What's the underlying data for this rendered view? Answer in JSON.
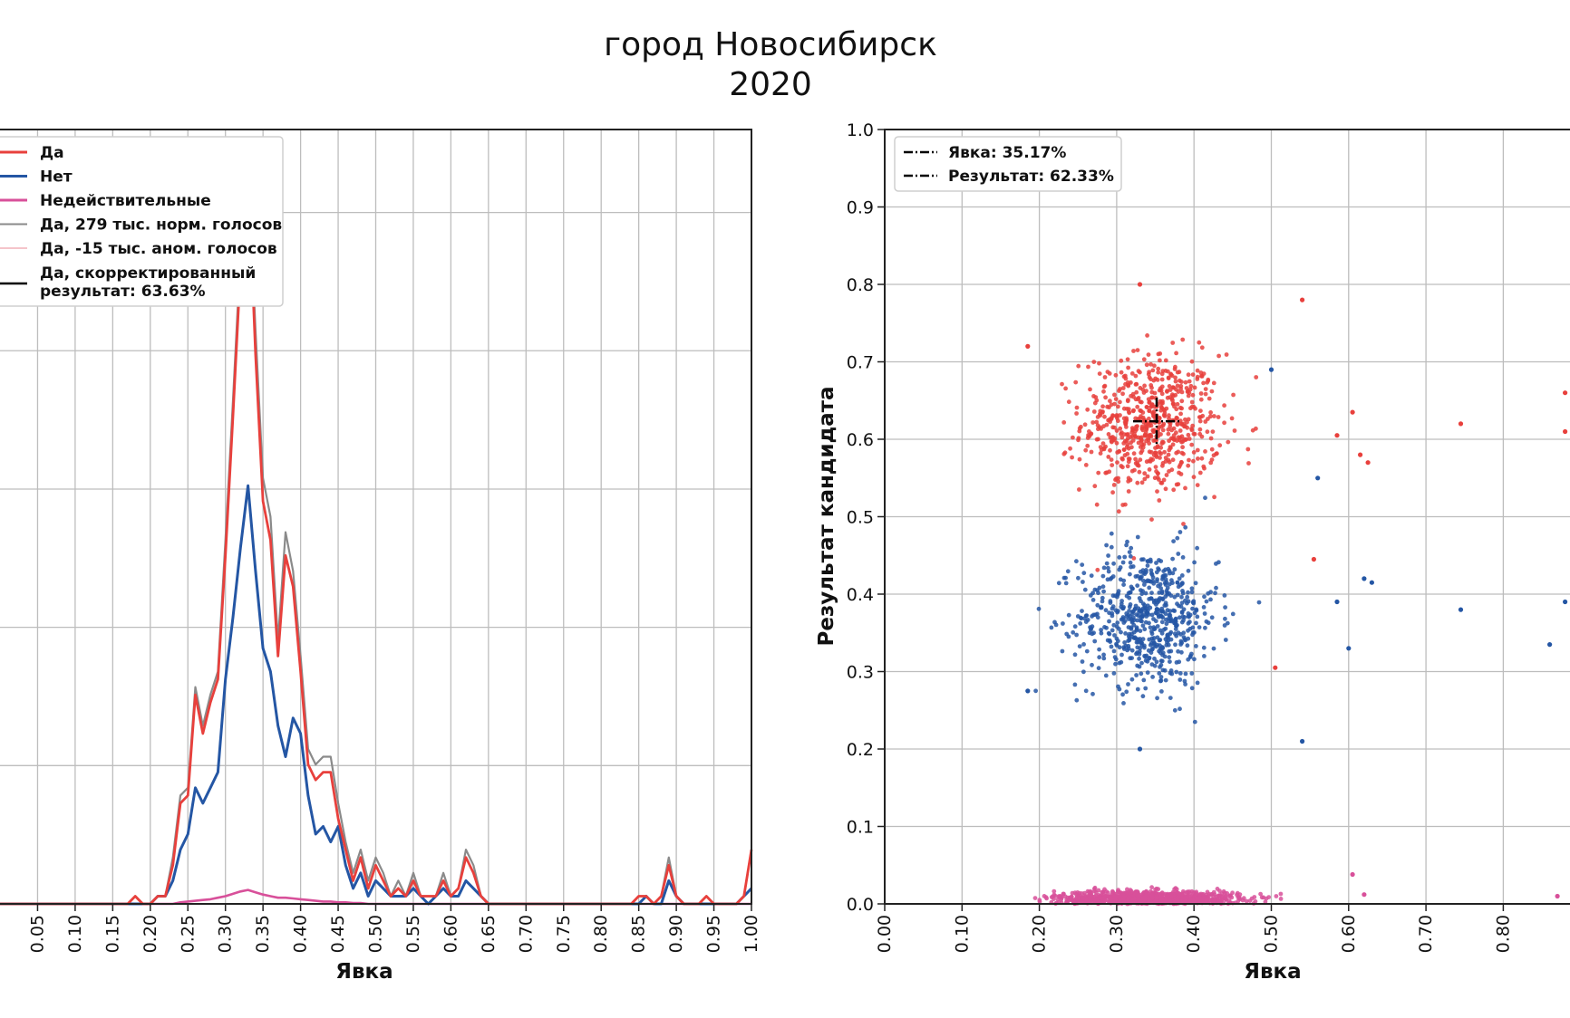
{
  "title": {
    "line1": "город Новосибирск",
    "line2": "2020"
  },
  "colors": {
    "yes": "#e8403c",
    "no": "#2456a4",
    "invalid": "#d8509a",
    "normal": "#8a8a8a",
    "anomalous": "#f2b0b8",
    "corrected": "#000000",
    "grid": "#bdbdbd"
  },
  "chart_data": [
    {
      "type": "line",
      "xlabel": "Явка",
      "ylabel": "",
      "xlim": [
        0.0,
        1.0
      ],
      "xticks": [
        "0.05",
        "0.10",
        "0.15",
        "0.20",
        "0.25",
        "0.30",
        "0.35",
        "0.40",
        "0.45",
        "0.50",
        "0.55",
        "0.60",
        "0.65",
        "0.70",
        "0.75",
        "0.80",
        "0.85",
        "0.90",
        "0.95",
        "1.00"
      ],
      "x": [
        0.0,
        0.17,
        0.18,
        0.19,
        0.2,
        0.21,
        0.22,
        0.23,
        0.24,
        0.25,
        0.26,
        0.27,
        0.28,
        0.29,
        0.3,
        0.31,
        0.32,
        0.33,
        0.34,
        0.35,
        0.36,
        0.37,
        0.38,
        0.39,
        0.4,
        0.41,
        0.42,
        0.43,
        0.44,
        0.45,
        0.46,
        0.47,
        0.48,
        0.49,
        0.5,
        0.51,
        0.52,
        0.53,
        0.54,
        0.55,
        0.56,
        0.57,
        0.58,
        0.59,
        0.6,
        0.61,
        0.62,
        0.63,
        0.64,
        0.65,
        0.84,
        0.85,
        0.86,
        0.87,
        0.88,
        0.89,
        0.9,
        0.91,
        0.92,
        0.93,
        0.94,
        0.95,
        0.96,
        0.97,
        0.98,
        0.99,
        1.0
      ],
      "legend": {
        "entries": [
          "Да",
          "Нет",
          "Недействительные",
          "Да, 279 тыс. норм. голосов",
          "Да, -15 тыс. аном. голосов",
          "Да, скорректированный",
          "результат: 63.63%"
        ],
        "position": "top-left"
      },
      "series": [
        {
          "name": "Да",
          "values": [
            0,
            0,
            1,
            0,
            0,
            1,
            1,
            5,
            13,
            14,
            27,
            22,
            26,
            29,
            45,
            63,
            82,
            95,
            71,
            52,
            47,
            32,
            45,
            41,
            30,
            18,
            16,
            17,
            17,
            11,
            7,
            3,
            6,
            2,
            5,
            3,
            1,
            2,
            1,
            3,
            1,
            1,
            1,
            3,
            1,
            2,
            6,
            4,
            1,
            0,
            0,
            1,
            1,
            0,
            1,
            5,
            1,
            0,
            0,
            0,
            1,
            0,
            0,
            0,
            0,
            1,
            7
          ]
        },
        {
          "name": "Нет",
          "values": [
            0,
            0,
            0,
            0,
            0,
            1,
            1,
            3,
            7,
            9,
            15,
            13,
            15,
            17,
            29,
            37,
            46,
            54,
            43,
            33,
            30,
            23,
            19,
            24,
            22,
            14,
            9,
            10,
            8,
            10,
            5,
            2,
            4,
            1,
            3,
            2,
            1,
            1,
            1,
            2,
            1,
            0,
            1,
            2,
            1,
            1,
            3,
            2,
            1,
            0,
            0,
            0,
            1,
            0,
            0,
            3,
            1,
            0,
            0,
            0,
            0,
            0,
            0,
            0,
            0,
            1,
            2
          ]
        },
        {
          "name": "Недействительные",
          "values": [
            0,
            0,
            0,
            0,
            0,
            0,
            0,
            0,
            0.2,
            0.3,
            0.4,
            0.5,
            0.6,
            0.8,
            1.0,
            1.3,
            1.6,
            1.8,
            1.5,
            1.2,
            1.0,
            0.8,
            0.8,
            0.7,
            0.6,
            0.5,
            0.4,
            0.3,
            0.3,
            0.2,
            0.2,
            0.1,
            0.1,
            0,
            0,
            0,
            0,
            0,
            0,
            0,
            0,
            0,
            0,
            0,
            0,
            0,
            0,
            0,
            0,
            0,
            0,
            0,
            0,
            0,
            0,
            0,
            0,
            0,
            0,
            0,
            0,
            0,
            0,
            0,
            0,
            0,
            0
          ]
        },
        {
          "name": "Да, 279 тыс. норм. голосов",
          "values": [
            0,
            0,
            1,
            0,
            0,
            1,
            1,
            6,
            14,
            15,
            28,
            23,
            27,
            30,
            47,
            65,
            84,
            96,
            74,
            55,
            50,
            34,
            48,
            43,
            32,
            20,
            18,
            19,
            19,
            13,
            8,
            4,
            7,
            3,
            6,
            4,
            1,
            3,
            1,
            4,
            1,
            1,
            1,
            4,
            1,
            2,
            7,
            5,
            1,
            0,
            0,
            1,
            1,
            0,
            1,
            6,
            1,
            0,
            0,
            0,
            1,
            0,
            0,
            0,
            0,
            1,
            7
          ]
        },
        {
          "name": "Да, -15 тыс. аном. голосов",
          "values": [
            0,
            0,
            0,
            0,
            0,
            0,
            0,
            0,
            0,
            0,
            0,
            0,
            0,
            0,
            0,
            0,
            0,
            0,
            0,
            0,
            0,
            0,
            0,
            0,
            0,
            0,
            0,
            0,
            0,
            0,
            0,
            0,
            0,
            0,
            0,
            0,
            0,
            0,
            0,
            0,
            0,
            0,
            0,
            0,
            0,
            0,
            0,
            0,
            0,
            0,
            0,
            0,
            0,
            0,
            0,
            0,
            0,
            0,
            0,
            0,
            0,
            0,
            0,
            0,
            0,
            0,
            0
          ]
        }
      ]
    },
    {
      "type": "scatter",
      "xlabel": "Явка",
      "ylabel": "Результат кандидата",
      "xlim": [
        0.0,
        0.9
      ],
      "ylim": [
        0.0,
        1.0
      ],
      "xticks": [
        "0.00",
        "0.10",
        "0.20",
        "0.30",
        "0.40",
        "0.50",
        "0.60",
        "0.70",
        "0.80"
      ],
      "yticks": [
        "0.0",
        "0.1",
        "0.2",
        "0.3",
        "0.4",
        "0.5",
        "0.6",
        "0.7",
        "0.8",
        "0.9",
        "1.0"
      ],
      "legend": {
        "entries": [
          "Явка: 35.17%",
          "Результат: 62.33%"
        ],
        "position": "top-left"
      },
      "turnout_marker": 0.3517,
      "result_marker": 0.6233,
      "clusters": [
        {
          "group": "yes",
          "center_x": 0.345,
          "center_y": 0.62,
          "spread_x": 0.045,
          "spread_y": 0.045,
          "count": 650
        },
        {
          "group": "no",
          "center_x": 0.34,
          "center_y": 0.37,
          "spread_x": 0.045,
          "spread_y": 0.045,
          "count": 650
        },
        {
          "group": "invalid",
          "center_x": 0.34,
          "center_y": 0.007,
          "spread_x": 0.06,
          "spread_y": 0.005,
          "count": 900
        }
      ],
      "outliers": [
        {
          "group": "yes",
          "x": 0.185,
          "y": 0.72
        },
        {
          "group": "yes",
          "x": 0.54,
          "y": 0.78
        },
        {
          "group": "yes",
          "x": 0.605,
          "y": 0.635
        },
        {
          "group": "yes",
          "x": 0.585,
          "y": 0.605
        },
        {
          "group": "yes",
          "x": 0.615,
          "y": 0.58
        },
        {
          "group": "yes",
          "x": 0.625,
          "y": 0.57
        },
        {
          "group": "yes",
          "x": 0.555,
          "y": 0.445
        },
        {
          "group": "yes",
          "x": 0.505,
          "y": 0.305
        },
        {
          "group": "yes",
          "x": 0.88,
          "y": 0.66
        },
        {
          "group": "yes",
          "x": 0.88,
          "y": 0.61
        },
        {
          "group": "yes",
          "x": 0.745,
          "y": 0.62
        },
        {
          "group": "yes",
          "x": 0.33,
          "y": 0.8
        },
        {
          "group": "no",
          "x": 0.185,
          "y": 0.275
        },
        {
          "group": "no",
          "x": 0.54,
          "y": 0.21
        },
        {
          "group": "no",
          "x": 0.5,
          "y": 0.69
        },
        {
          "group": "no",
          "x": 0.56,
          "y": 0.55
        },
        {
          "group": "no",
          "x": 0.6,
          "y": 0.33
        },
        {
          "group": "no",
          "x": 0.62,
          "y": 0.42
        },
        {
          "group": "no",
          "x": 0.63,
          "y": 0.415
        },
        {
          "group": "no",
          "x": 0.585,
          "y": 0.39
        },
        {
          "group": "no",
          "x": 0.88,
          "y": 0.39
        },
        {
          "group": "no",
          "x": 0.86,
          "y": 0.335
        },
        {
          "group": "no",
          "x": 0.745,
          "y": 0.38
        },
        {
          "group": "no",
          "x": 0.33,
          "y": 0.2
        },
        {
          "group": "invalid",
          "x": 0.605,
          "y": 0.038
        },
        {
          "group": "invalid",
          "x": 0.62,
          "y": 0.012
        },
        {
          "group": "invalid",
          "x": 0.87,
          "y": 0.01
        }
      ]
    }
  ]
}
